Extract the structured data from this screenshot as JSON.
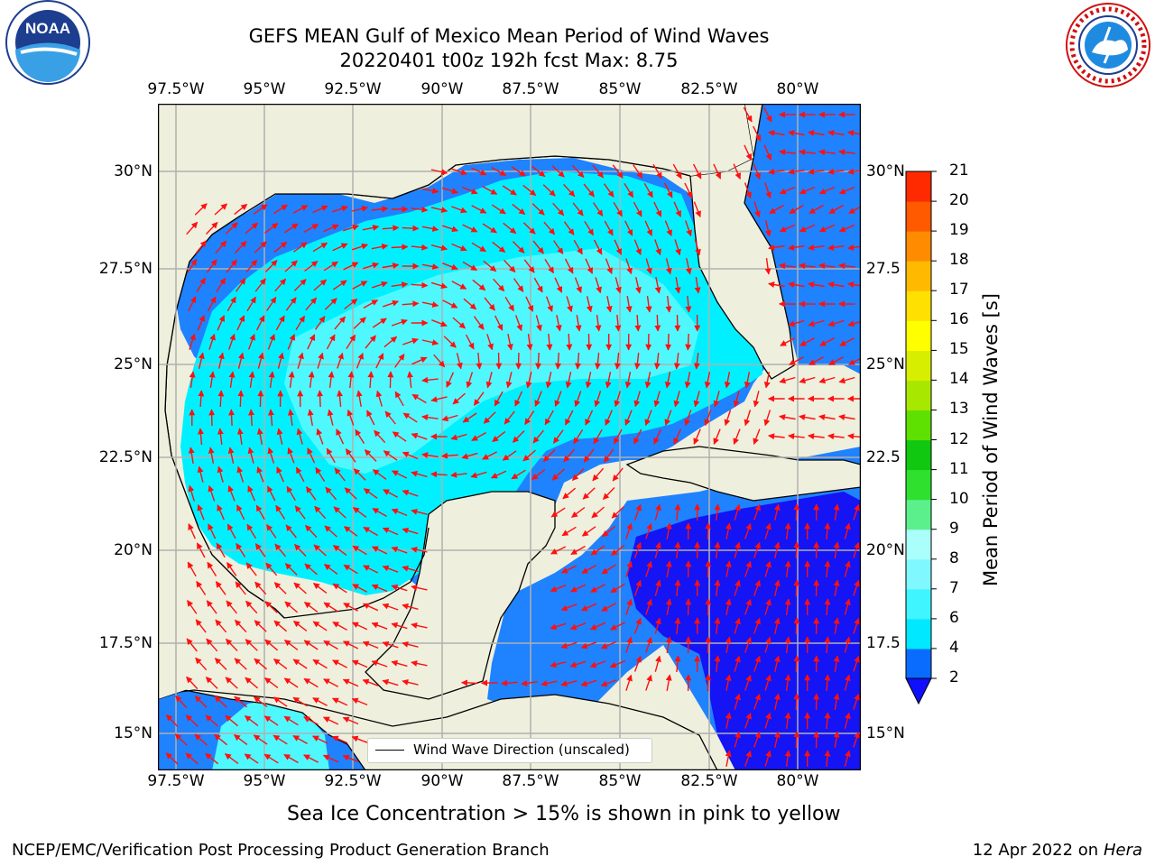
{
  "title": {
    "line1": "GEFS MEAN Gulf of Mexico Mean Period of Wind Waves",
    "line2": "20220401 t00z 192h fcst   Max: 8.75"
  },
  "longitude_ticks": [
    "97.5°W",
    "95°W",
    "92.5°W",
    "90°W",
    "87.5°W",
    "85°W",
    "82.5°W",
    "80°W"
  ],
  "latitude_ticks": [
    "30°N",
    "27.5°N",
    "25°N",
    "22.5°N",
    "20°N",
    "17.5°N",
    "15°N"
  ],
  "latitude_ticks_right": [
    "30°N",
    "27.5",
    "25°N",
    "22.5",
    "20°N",
    "17.5",
    "15°N"
  ],
  "legend": {
    "label": "Wind Wave Direction (unscaled)"
  },
  "colorbar": {
    "title": "Mean Period of Wind Waves [s]",
    "levels": [
      "2",
      "4",
      "6",
      "7",
      "8",
      "9",
      "10",
      "11",
      "12",
      "13",
      "14",
      "15",
      "16",
      "17",
      "18",
      "19",
      "20",
      "21"
    ],
    "colors": [
      "#0a6cff",
      "#00e8ff",
      "#3ff5ff",
      "#7ff8ff",
      "#aafffa",
      "#5cf08c",
      "#2fe02f",
      "#10c810",
      "#5ee000",
      "#a8e800",
      "#d8ee00",
      "#ffff00",
      "#ffe000",
      "#ffba00",
      "#ff8c00",
      "#ff5a00",
      "#ff2a00"
    ],
    "extend_color": "#1010ff"
  },
  "field_colors": {
    "land": "#efefdd",
    "period_2_4": "#1f82ff",
    "period_4_6": "#00f0ff",
    "period_6_7": "#4ff8ff",
    "period_0_2": "#1414f5",
    "arrow": "#ff1010"
  },
  "subtitle": "Sea Ice Concentration > 15% is shown in pink to yellow",
  "footer": {
    "left": "NCEP/EMC/Verification Post Processing Product Generation Branch",
    "right_date": "12 Apr 2022 on ",
    "right_host": "Hera"
  },
  "logos": {
    "left": "NOAA",
    "right": "NATIONAL WEATHER SERVICE"
  }
}
